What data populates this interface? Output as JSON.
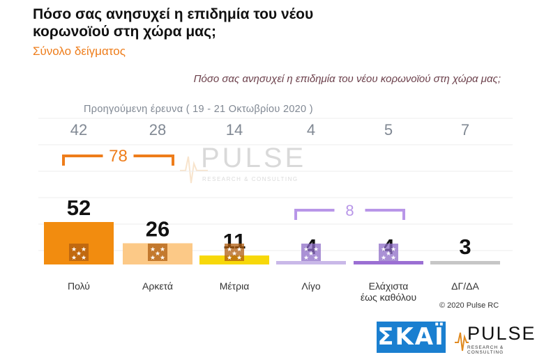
{
  "title": "Πόσο σας ανησυχεί η επιδημία του νέου κορωνοϊού στη χώρα μας;",
  "subtitle": "Σύνολο δείγματος",
  "question": "Πόσο σας ανησυχεί η επιδημία του νέου κορωνοϊού στη χώρα μας;",
  "previous_survey_label": "Προηγούμενη έρευνα ( 19 - 21 Οκτωβρίου 2020 )",
  "copyright": "© 2020 Pulse RC",
  "watermark": {
    "word": "PULSE",
    "tagline": "RESEARCH & CONSULTING"
  },
  "logos": {
    "skai": "ΣΚΑΪ",
    "pulse_word": "PULSE",
    "pulse_tagline": "RESEARCH & CONSULTING"
  },
  "colors": {
    "polu": "#f28c0f",
    "arketa": "#fcc987",
    "metria": "#f7d80a",
    "ligo": "#c9b8e8",
    "elaxista": "#9b6fd3",
    "dg_da": "#c6c6c6",
    "accent_orange": "#ee7d1b",
    "accent_purple": "#b896e8",
    "previous_values": "#808893"
  },
  "chart_data": {
    "type": "bar",
    "title": "Πόσο σας ανησυχεί η επιδημία του νέου κορωνοϊού στη χώρα μας;",
    "categories": [
      "Πολύ",
      "Αρκετά",
      "Μέτρια",
      "Λίγο",
      "Ελάχιστα\nέως καθόλου",
      "ΔΓ/ΔΑ"
    ],
    "series": [
      {
        "name": "",
        "values": [
          52,
          26,
          11,
          4,
          4,
          3
        ]
      },
      {
        "name": "Προηγούμενη έρευνα ( 19 - 21 Οκτωβρίου 2020 )",
        "values": [
          42,
          28,
          14,
          4,
          5,
          7
        ]
      }
    ],
    "groups": [
      {
        "label": "78",
        "categories": [
          "Πολύ",
          "Αρκετά"
        ]
      },
      {
        "label": "8",
        "categories": [
          "Λίγο",
          "Ελάχιστα\nέως καθόλου"
        ]
      }
    ],
    "ylim": [
      0,
      60
    ],
    "xlabel": "",
    "ylabel": "",
    "grid": true,
    "legend": "none"
  }
}
